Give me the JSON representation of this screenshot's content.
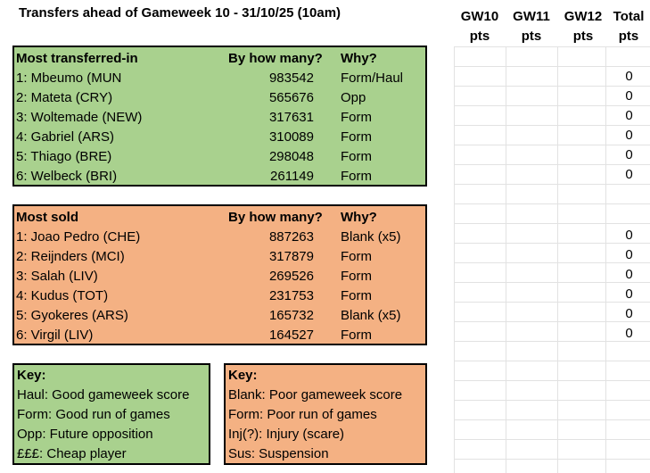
{
  "title": "Transfers ahead of Gameweek 10 - 31/10/25 (10am)",
  "columns": [
    "GW10",
    "GW11",
    "GW12",
    "Total"
  ],
  "pts_label": "pts",
  "transferred_in": {
    "header": {
      "name": "Most transferred-in",
      "count": "By how many?",
      "why": "Why?"
    },
    "rows": [
      {
        "name": "1: Mbeumo (MUN",
        "count": "983542",
        "why": "Form/Haul"
      },
      {
        "name": "2: Mateta (CRY)",
        "count": "565676",
        "why": "Opp"
      },
      {
        "name": "3: Woltemade (NEW)",
        "count": "317631",
        "why": "Form"
      },
      {
        "name": "4: Gabriel (ARS)",
        "count": "310089",
        "why": "Form"
      },
      {
        "name": "5: Thiago (BRE)",
        "count": "298048",
        "why": "Form"
      },
      {
        "name": "6: Welbeck (BRI)",
        "count": "261149",
        "why": "Form"
      }
    ],
    "totals": [
      "0",
      "0",
      "0",
      "0",
      "0",
      "0"
    ]
  },
  "sold": {
    "header": {
      "name": "Most sold",
      "count": "By how many?",
      "why": "Why?"
    },
    "rows": [
      {
        "name": "1: Joao Pedro (CHE)",
        "count": "887263",
        "why": "Blank (x5)"
      },
      {
        "name": "2: Reijnders (MCI)",
        "count": "317879",
        "why": "Form"
      },
      {
        "name": "3: Salah (LIV)",
        "count": "269526",
        "why": "Form"
      },
      {
        "name": "4: Kudus (TOT)",
        "count": "231753",
        "why": "Form"
      },
      {
        "name": "5: Gyokeres (ARS)",
        "count": "165732",
        "why": "Blank (x5)"
      },
      {
        "name": "6: Virgil (LIV)",
        "count": "164527",
        "why": "Form"
      }
    ],
    "totals": [
      "0",
      "0",
      "0",
      "0",
      "0",
      "0"
    ]
  },
  "key_green": {
    "title": "Key:",
    "lines": [
      "Haul: Good gameweek score",
      "Form: Good run of games",
      "Opp: Future opposition",
      "£££: Cheap player"
    ]
  },
  "key_orange": {
    "title": "Key:",
    "lines": [
      "Blank: Poor gameweek score",
      "Form: Poor run of games",
      "Inj(?): Injury (scare)",
      "Sus: Suspension"
    ]
  },
  "colors": {
    "green": "#a9d18e",
    "orange": "#f4b183",
    "grid": "#e2e2e2"
  }
}
